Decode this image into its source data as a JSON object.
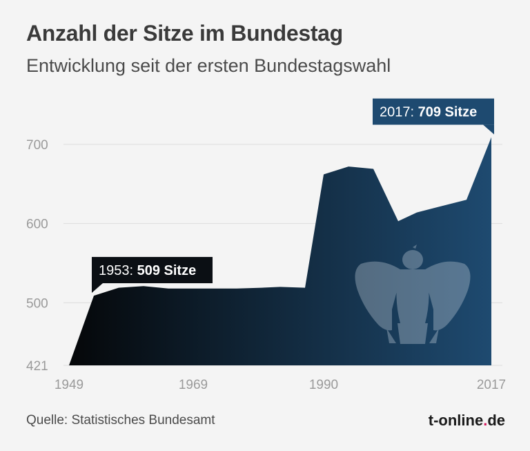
{
  "header": {
    "title": "Anzahl der Sitze im Bundestag",
    "subtitle": "Entwicklung seit der ersten Bundestagswahl"
  },
  "footer": {
    "source": "Quelle: Statistisches Bundesamt",
    "brand_prefix": "t-online",
    "brand_dot": ".",
    "brand_suffix": "de",
    "brand_dot_color": "#d4145a"
  },
  "chart_data": {
    "type": "area",
    "title": "Anzahl der Sitze im Bundestag",
    "subtitle": "Entwicklung seit der ersten Bundestagswahl",
    "xlabel": "",
    "ylabel": "",
    "xlim": [
      1949,
      2017
    ],
    "ylim": [
      421,
      720
    ],
    "x_ticks": [
      1949,
      1969,
      1990,
      2017
    ],
    "y_ticks": [
      421,
      500,
      600,
      700
    ],
    "grid": true,
    "legend": "none",
    "colors": {
      "start": "#050709",
      "end": "#1e4a70"
    },
    "series": [
      {
        "x": [
          1949,
          1953,
          1957,
          1961,
          1965,
          1969,
          1972,
          1976,
          1980,
          1983,
          1987,
          1990,
          1994,
          1998,
          2002,
          2005,
          2009,
          2013,
          2017
        ],
        "values": [
          421,
          509,
          519,
          521,
          518,
          518,
          518,
          518,
          519,
          520,
          519,
          662,
          672,
          669,
          603,
          614,
          622,
          630,
          709
        ]
      }
    ],
    "annotations": [
      {
        "label": "1953: ",
        "value_label": "509 Sitze",
        "x": 1953,
        "y": 509
      },
      {
        "label": "2017: ",
        "value_label": "709 Sitze",
        "x": 2017,
        "y": 709
      }
    ],
    "watermark": "bundesadler-icon"
  }
}
